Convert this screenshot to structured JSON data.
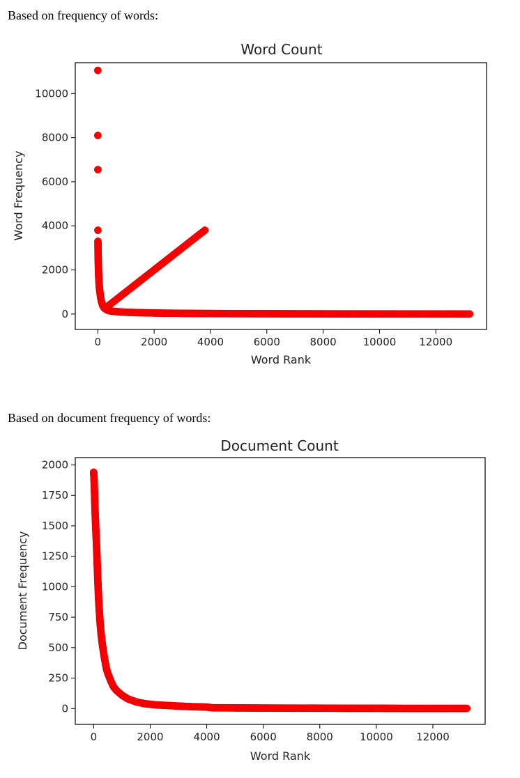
{
  "captions": {
    "word_count": "Based on frequency of words:",
    "document_count": "Based on document frequency of words:"
  },
  "colors": {
    "marker": "#ff0000",
    "frame": "#000000"
  },
  "chart_data": [
    {
      "type": "scatter",
      "title": "Word Count",
      "xlabel": "Word Rank",
      "ylabel": "Word Frequency",
      "xlim": [
        -800,
        13800
      ],
      "ylim": [
        -700,
        11400
      ],
      "xticks": [
        0,
        2000,
        4000,
        6000,
        8000,
        10000,
        12000
      ],
      "yticks": [
        0,
        2000,
        4000,
        6000,
        8000,
        10000
      ],
      "grid": false,
      "marker_color": "#ff0000",
      "points": [
        [
          0,
          11050
        ],
        [
          1,
          8100
        ],
        [
          2,
          6550
        ],
        [
          3,
          3800
        ],
        [
          5,
          3300
        ],
        [
          7,
          3100
        ],
        [
          9,
          2800
        ],
        [
          12,
          2600
        ],
        [
          15,
          2400
        ],
        [
          20,
          2200
        ],
        [
          25,
          1950
        ],
        [
          30,
          1750
        ],
        [
          40,
          1500
        ],
        [
          50,
          1300
        ],
        [
          60,
          1150
        ],
        [
          80,
          950
        ],
        [
          100,
          750
        ],
        [
          130,
          560
        ],
        [
          170,
          400
        ],
        [
          220,
          280
        ],
        [
          300,
          200
        ],
        [
          400,
          150
        ],
        [
          550,
          120
        ],
        [
          750,
          100
        ],
        [
          1000,
          80
        ],
        [
          1500,
          60
        ],
        [
          2000,
          45
        ],
        [
          3000,
          30
        ],
        [
          4000,
          22
        ],
        [
          5000,
          16
        ],
        [
          6000,
          12
        ],
        [
          7000,
          9
        ],
        [
          8000,
          7
        ],
        [
          9000,
          5
        ],
        [
          10000,
          4
        ],
        [
          11000,
          3
        ],
        [
          12000,
          2
        ],
        [
          13200,
          1
        ]
      ]
    },
    {
      "type": "scatter",
      "title": "Document Count",
      "xlabel": "Word Rank",
      "ylabel": "Document Frequency",
      "xlim": [
        -650,
        13850
      ],
      "ylim": [
        -130,
        2060
      ],
      "xticks": [
        0,
        2000,
        4000,
        6000,
        8000,
        10000,
        12000
      ],
      "yticks": [
        0,
        250,
        500,
        750,
        1000,
        1250,
        1500,
        1750,
        2000
      ],
      "grid": false,
      "marker_color": "#ff0000",
      "points": [
        [
          0,
          1940
        ],
        [
          10,
          1900
        ],
        [
          20,
          1850
        ],
        [
          30,
          1780
        ],
        [
          40,
          1700
        ],
        [
          50,
          1620
        ],
        [
          60,
          1560
        ],
        [
          80,
          1450
        ],
        [
          100,
          1350
        ],
        [
          120,
          1230
        ],
        [
          140,
          1100
        ],
        [
          160,
          980
        ],
        [
          180,
          880
        ],
        [
          200,
          800
        ],
        [
          230,
          700
        ],
        [
          260,
          620
        ],
        [
          300,
          540
        ],
        [
          350,
          460
        ],
        [
          400,
          390
        ],
        [
          450,
          330
        ],
        [
          500,
          290
        ],
        [
          600,
          230
        ],
        [
          700,
          180
        ],
        [
          800,
          150
        ],
        [
          1000,
          110
        ],
        [
          1200,
          80
        ],
        [
          1500,
          55
        ],
        [
          1800,
          40
        ],
        [
          2200,
          30
        ],
        [
          2600,
          25
        ],
        [
          3000,
          20
        ],
        [
          3500,
          15
        ],
        [
          4000,
          12
        ],
        [
          4200,
          6
        ],
        [
          5000,
          5
        ],
        [
          6000,
          4
        ],
        [
          7000,
          3
        ],
        [
          8000,
          3
        ],
        [
          9000,
          2
        ],
        [
          10000,
          2
        ],
        [
          11000,
          1
        ],
        [
          12000,
          1
        ],
        [
          13200,
          1
        ]
      ]
    }
  ]
}
